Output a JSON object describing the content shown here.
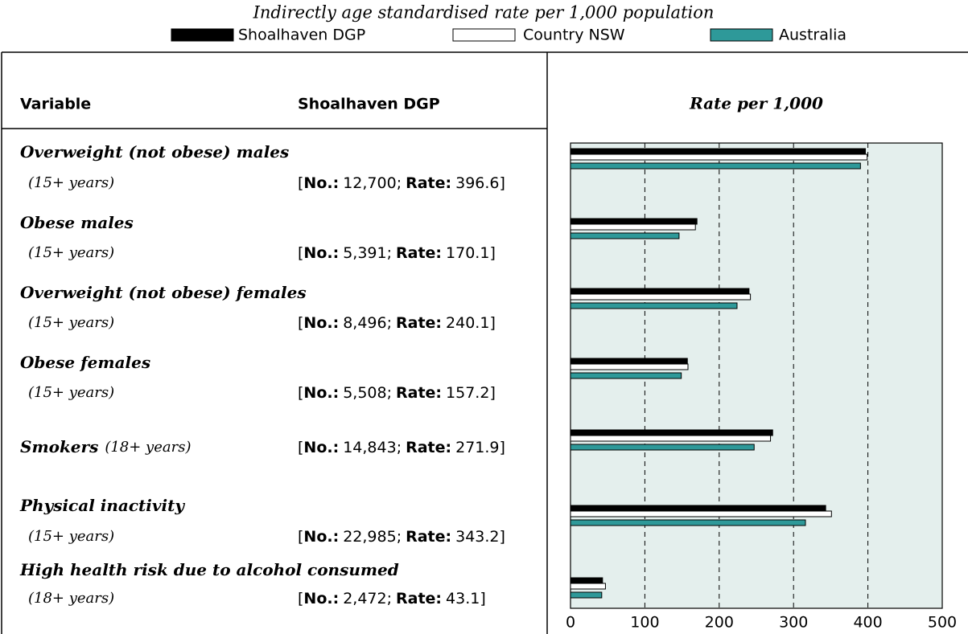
{
  "chart_data": {
    "type": "bar",
    "orientation": "horizontal",
    "title": "Indirectly age standardised rate per 1,000 population",
    "columns": [
      "Variable",
      "Shoalhaven DGP",
      "Rate per 1,000"
    ],
    "categories": [
      "Overweight (not obese) males",
      "Obese males",
      "Overweight (not obese) females",
      "Obese females",
      "Smokers",
      "Physical inactivity",
      "High health risk due to alcohol consumed"
    ],
    "ages": [
      "(15+ years)",
      "(15+ years)",
      "(15+ years)",
      "(15+ years)",
      "(18+ years)",
      "(15+ years)",
      "(18+ years)"
    ],
    "no_label": "No.:",
    "rate_label": "Rate:",
    "open": "[",
    "sep": ";",
    "close": "]",
    "counts": [
      "12,700",
      "5,391",
      "8,496",
      "5,508",
      "14,843",
      "22,985",
      "2,472"
    ],
    "series": [
      {
        "name": "Shoalhaven DGP",
        "color": "#000000",
        "values": [
          396.6,
          170.1,
          240.1,
          157.2,
          271.9,
          343.2,
          43.1
        ]
      },
      {
        "name": "Country NSW",
        "color": "#ffffff",
        "values": [
          399,
          168,
          242,
          158,
          269,
          351,
          47
        ]
      },
      {
        "name": "Australia",
        "color": "#2e9999",
        "values": [
          390,
          146,
          224,
          149,
          247,
          316,
          42
        ]
      }
    ],
    "xlim": [
      0,
      500
    ],
    "xticks": [
      0,
      100,
      200,
      300,
      400,
      500
    ],
    "grid": true,
    "plot_background": "#e4efed"
  }
}
